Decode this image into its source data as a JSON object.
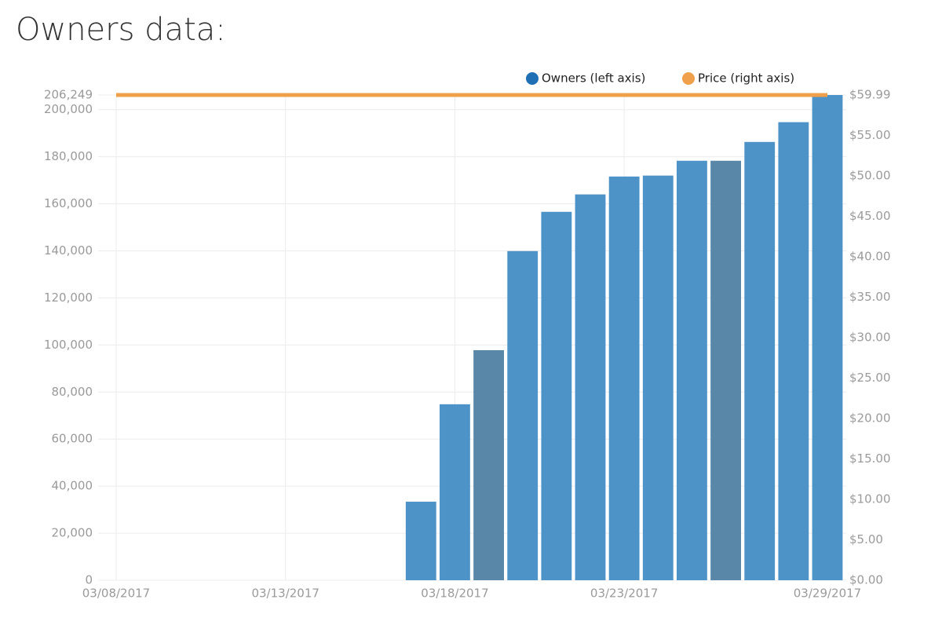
{
  "chart_data": {
    "type": "bar_line",
    "title": "Owners data:",
    "xlim": [
      "03/08/2017",
      "03/29/2017"
    ],
    "xticks": [
      "03/08/2017",
      "03/13/2017",
      "03/18/2017",
      "03/23/2017",
      "03/29/2017"
    ],
    "ylim": [
      0,
      206249
    ],
    "yticks": [
      0,
      {
        "value": 20000,
        "label": "20,000"
      },
      {
        "value": 40000,
        "label": "40,000"
      },
      {
        "value": 60000,
        "label": "60,000"
      },
      {
        "value": 80000,
        "label": "80,000"
      },
      {
        "value": 100000,
        "label": "100,000"
      },
      {
        "value": 120000,
        "label": "120,000"
      },
      {
        "value": 140000,
        "label": "140,000"
      },
      {
        "value": 160000,
        "label": "160,000"
      },
      {
        "value": 180000,
        "label": "180,000"
      },
      {
        "value": 200000,
        "label": "200,000"
      },
      {
        "value": 206249,
        "label": "206,249"
      }
    ],
    "y2lim": [
      0,
      59.99
    ],
    "y2ticks": [
      {
        "value": 0,
        "label": "$0.00"
      },
      {
        "value": 5,
        "label": "$5.00"
      },
      {
        "value": 10,
        "label": "$10.00"
      },
      {
        "value": 15,
        "label": "$15.00"
      },
      {
        "value": 20,
        "label": "$20.00"
      },
      {
        "value": 25,
        "label": "$25.00"
      },
      {
        "value": 30,
        "label": "$30.00"
      },
      {
        "value": 35,
        "label": "$35.00"
      },
      {
        "value": 40,
        "label": "$40.00"
      },
      {
        "value": 45,
        "label": "$45.00"
      },
      {
        "value": 50,
        "label": "$50.00"
      },
      {
        "value": 55,
        "label": "$55.00"
      },
      {
        "value": 59.99,
        "label": "$59.99"
      }
    ],
    "grid": true,
    "series": [
      {
        "name": "Owners (left axis)",
        "type": "bar",
        "color": "#1f6fb4",
        "colors": [
          "#4d93c8",
          "#4d93c8",
          "#5887a8",
          "#4d93c8",
          "#4d93c8",
          "#4d93c8",
          "#4d93c8",
          "#4d93c8",
          "#4d93c8",
          "#5887a8",
          "#4d93c8",
          "#4d93c8",
          "#4d93c8"
        ],
        "x": [
          "03/17/2017",
          "03/18/2017",
          "03/19/2017",
          "03/20/2017",
          "03/21/2017",
          "03/22/2017",
          "03/23/2017",
          "03/24/2017",
          "03/25/2017",
          "03/26/2017",
          "03/27/2017",
          "03/28/2017",
          "03/29/2017"
        ],
        "values": [
          33400,
          74800,
          97800,
          139900,
          156600,
          164000,
          171600,
          172000,
          178300,
          178300,
          186300,
          194700,
          206249
        ]
      },
      {
        "name": "Price (right axis)",
        "type": "line",
        "axis": "y2",
        "color": "#f0a04b",
        "x": [
          "03/08/2017",
          "03/29/2017"
        ],
        "values": [
          59.99,
          59.99
        ]
      }
    ]
  }
}
